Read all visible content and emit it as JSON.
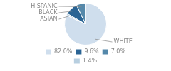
{
  "chart_data": {
    "type": "pie",
    "categories": [
      "WHITE",
      "ASIAN",
      "BLACK",
      "HISPANIC"
    ],
    "values": [
      82.0,
      1.4,
      9.6,
      7.0
    ],
    "value_labels": [
      "82.0%",
      "1.4%",
      "9.6%",
      "7.0%"
    ],
    "colors": [
      "#cfdeed",
      "#b8cfe0",
      "#2a6494",
      "#5488aa"
    ],
    "legend": "bottom"
  }
}
